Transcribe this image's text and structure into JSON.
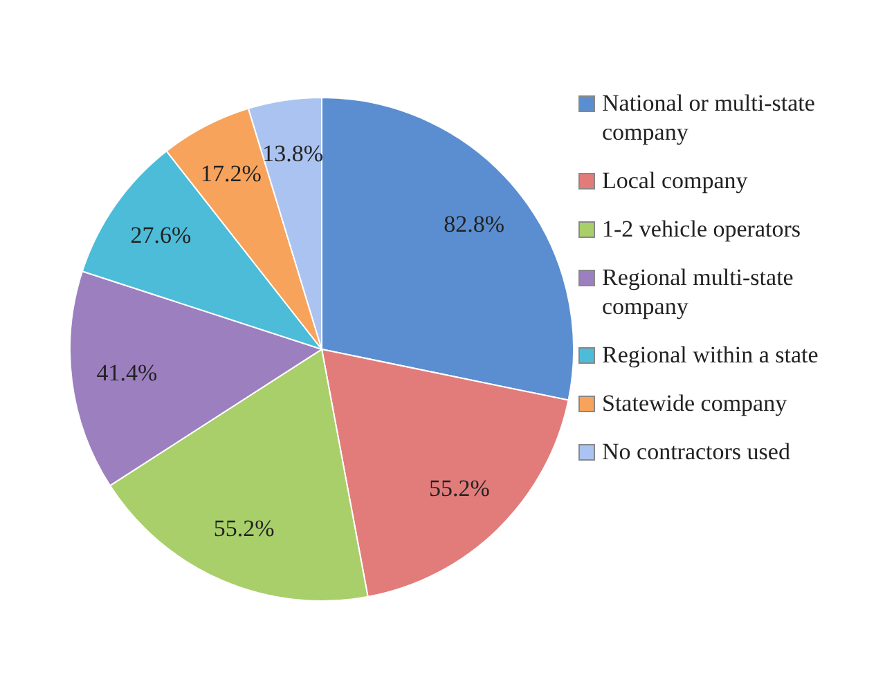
{
  "chart_data": {
    "type": "pie",
    "categories": [
      "National or multi-state company",
      "Local company",
      "1-2 vehicle operators",
      "Regional multi-state company",
      "Regional within a state",
      "Statewide company",
      "No contractors used"
    ],
    "values": [
      82.8,
      55.2,
      55.2,
      41.4,
      27.6,
      17.2,
      13.8
    ],
    "colors": [
      "#5a8ed0",
      "#e27c7b",
      "#a9cf6a",
      "#9c7fbf",
      "#4cbcd8",
      "#f7a35c",
      "#abc3f0"
    ],
    "value_labels": [
      "82.8%",
      "55.2%",
      "55.2%",
      "41.4%",
      "27.6%",
      "17.2%",
      "13.8%"
    ],
    "legend": "right"
  }
}
